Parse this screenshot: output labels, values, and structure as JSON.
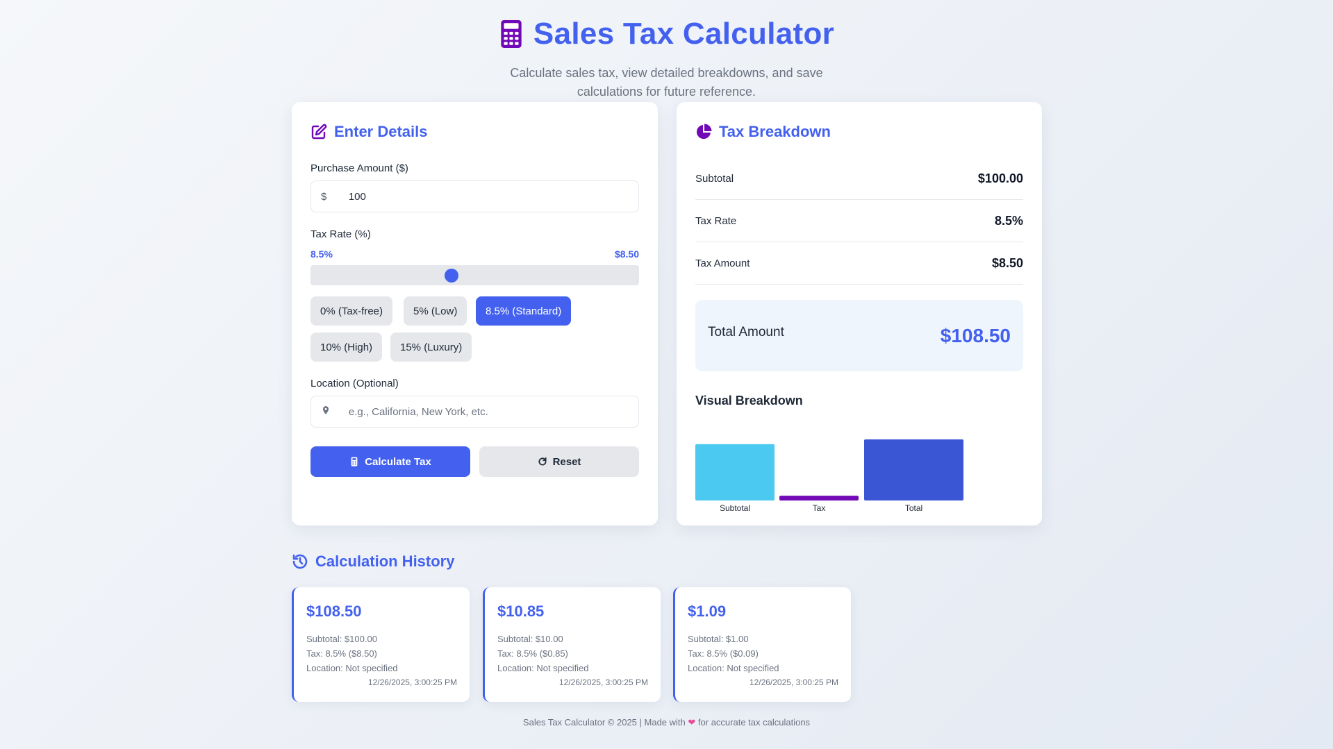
{
  "header": {
    "title": "Sales Tax Calculator",
    "subtitle": "Calculate sales tax, view detailed breakdowns, and save calculations for future reference."
  },
  "form": {
    "title": "Enter Details",
    "amount_label": "Purchase Amount ($)",
    "amount_prefix": "$",
    "amount_value": "100",
    "rate_label": "Tax Rate (%)",
    "rate_display": "8.5%",
    "rate_amount_display": "$8.50",
    "slider_fraction": 0.425,
    "presets": [
      {
        "label": "0% (Tax-free)",
        "active": false
      },
      {
        "label": "5% (Low)",
        "active": false
      },
      {
        "label": "8.5% (Standard)",
        "active": true
      },
      {
        "label": "10% (High)",
        "active": false
      },
      {
        "label": "15% (Luxury)",
        "active": false
      }
    ],
    "location_label": "Location (Optional)",
    "location_placeholder": "e.g., California, New York, etc.",
    "calculate_label": "Calculate Tax",
    "reset_label": "Reset"
  },
  "breakdown": {
    "title": "Tax Breakdown",
    "rows": [
      {
        "label": "Subtotal",
        "value": "$100.00"
      },
      {
        "label": "Tax Rate",
        "value": "8.5%"
      },
      {
        "label": "Tax Amount",
        "value": "$8.50"
      }
    ],
    "total_label": "Total Amount",
    "total_value": "$108.50",
    "visual_title": "Visual Breakdown"
  },
  "chart_data": {
    "type": "bar",
    "categories": [
      "Subtotal",
      "Tax",
      "Total"
    ],
    "values": [
      100.0,
      8.5,
      108.5
    ],
    "colors": [
      "#4cc9f0",
      "#7209b7",
      "#3a56d4"
    ],
    "title": "Visual Breakdown"
  },
  "history": {
    "title": "Calculation History",
    "items": [
      {
        "total": "$108.50",
        "subtotal": "Subtotal: $100.00",
        "tax": "Tax: 8.5% ($8.50)",
        "location": "Location: Not specified",
        "time": "12/26/2025, 3:00:25 PM"
      },
      {
        "total": "$10.85",
        "subtotal": "Subtotal: $10.00",
        "tax": "Tax: 8.5% ($0.85)",
        "location": "Location: Not specified",
        "time": "12/26/2025, 3:00:25 PM"
      },
      {
        "total": "$1.09",
        "subtotal": "Subtotal: $1.00",
        "tax": "Tax: 8.5% ($0.09)",
        "location": "Location: Not specified",
        "time": "12/26/2025, 3:00:25 PM"
      }
    ]
  },
  "footer": {
    "before": "Sales Tax Calculator © 2025 | Made with",
    "heart": "❤",
    "after": "for accurate tax calculations"
  },
  "colors": {
    "primary": "#4361ee",
    "purple": "#7209b7",
    "cyan": "#4cc9f0",
    "muted": "#6b7280"
  },
  "icons": {
    "title": "calculator-icon",
    "form": "edit-icon",
    "breakdown": "pie-chart-icon",
    "location": "map-pin-icon",
    "calculate": "calculator-icon",
    "reset": "refresh-icon",
    "history": "history-icon"
  }
}
